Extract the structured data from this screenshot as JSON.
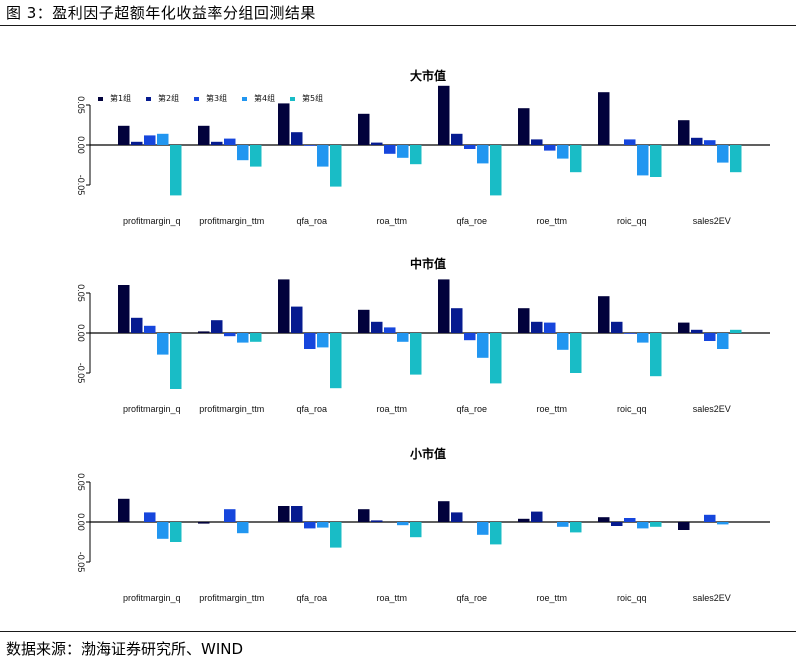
{
  "figure_title": "图 3：盈利因子超额年化收益率分组回测结果",
  "source": "数据来源：渤海证券研究所、WIND",
  "colors": [
    "#02023c",
    "#061b8f",
    "#1646dc",
    "#2196f0",
    "#19bcc6"
  ],
  "legend": [
    "第1组",
    "第2组",
    "第3组",
    "第4组",
    "第5组"
  ],
  "chart_data": [
    {
      "type": "bar",
      "title": "大市值",
      "categories": [
        "profitmargin_q",
        "profitmargin_ttm",
        "qfa_roa",
        "roa_ttm",
        "qfa_roe",
        "roe_ttm",
        "roic_qq",
        "sales2EV"
      ],
      "yticks": [
        "0.05",
        "0.00",
        "-0.05"
      ],
      "tick_values": [
        0.05,
        0.0,
        -0.05
      ],
      "ylim": [
        -0.065,
        0.08
      ],
      "legend_position": "top-left",
      "series": [
        {
          "name": "第1组",
          "values": [
            0.024,
            0.024,
            0.052,
            0.039,
            0.074,
            0.046,
            0.066,
            0.031
          ]
        },
        {
          "name": "第2组",
          "values": [
            0.004,
            0.004,
            0.016,
            0.003,
            0.014,
            0.007,
            0.0,
            0.009
          ]
        },
        {
          "name": "第3组",
          "values": [
            0.012,
            0.008,
            -0.001,
            -0.011,
            -0.005,
            -0.007,
            0.007,
            0.006
          ]
        },
        {
          "name": "第4组",
          "values": [
            0.014,
            -0.019,
            -0.027,
            -0.016,
            -0.023,
            -0.017,
            -0.038,
            -0.022
          ]
        },
        {
          "name": "第5组",
          "values": [
            -0.063,
            -0.027,
            -0.052,
            -0.024,
            -0.063,
            -0.034,
            -0.04,
            -0.034
          ]
        }
      ]
    },
    {
      "type": "bar",
      "title": "中市值",
      "categories": [
        "profitmargin_q",
        "profitmargin_ttm",
        "qfa_roa",
        "roa_ttm",
        "qfa_roe",
        "roe_ttm",
        "roic_qq",
        "sales2EV"
      ],
      "yticks": [
        "0.05",
        "0.00",
        "-0.05"
      ],
      "tick_values": [
        0.05,
        0.0,
        -0.05
      ],
      "ylim": [
        -0.065,
        0.08
      ],
      "legend_position": "none",
      "series": [
        {
          "name": "第1组",
          "values": [
            0.06,
            0.002,
            0.067,
            0.029,
            0.067,
            0.031,
            0.046,
            0.013
          ]
        },
        {
          "name": "第2组",
          "values": [
            0.019,
            0.016,
            0.033,
            0.014,
            0.031,
            0.014,
            0.014,
            0.004
          ]
        },
        {
          "name": "第3组",
          "values": [
            0.009,
            -0.004,
            -0.02,
            0.007,
            -0.009,
            0.013,
            -0.001,
            -0.01
          ]
        },
        {
          "name": "第4组",
          "values": [
            -0.027,
            -0.012,
            -0.018,
            -0.011,
            -0.031,
            -0.021,
            -0.012,
            -0.02
          ]
        },
        {
          "name": "第5组",
          "values": [
            -0.07,
            -0.011,
            -0.069,
            -0.052,
            -0.063,
            -0.05,
            -0.054,
            0.004
          ]
        }
      ]
    },
    {
      "type": "bar",
      "title": "小市值",
      "categories": [
        "profitmargin_q",
        "profitmargin_ttm",
        "qfa_roa",
        "roa_ttm",
        "qfa_roe",
        "roe_ttm",
        "roic_qq",
        "sales2EV"
      ],
      "yticks": [
        "0.05",
        "0.00",
        "-0.05"
      ],
      "tick_values": [
        0.05,
        0.0,
        -0.05
      ],
      "ylim": [
        -0.065,
        0.08
      ],
      "legend_position": "none",
      "series": [
        {
          "name": "第1组",
          "values": [
            0.029,
            -0.002,
            0.02,
            0.016,
            0.026,
            0.004,
            0.006,
            -0.01
          ]
        },
        {
          "name": "第2组",
          "values": [
            0.0,
            0.0,
            0.02,
            0.002,
            0.012,
            0.013,
            -0.005,
            0.0
          ]
        },
        {
          "name": "第3组",
          "values": [
            0.012,
            0.016,
            -0.008,
            0.0,
            0.0,
            0.0,
            0.005,
            0.009
          ]
        },
        {
          "name": "第4组",
          "values": [
            -0.021,
            -0.014,
            -0.007,
            -0.004,
            -0.016,
            -0.006,
            -0.008,
            -0.003
          ]
        },
        {
          "name": "第5组",
          "values": [
            -0.025,
            0.0,
            -0.032,
            -0.019,
            -0.028,
            -0.013,
            -0.006,
            0.0
          ]
        }
      ]
    }
  ]
}
